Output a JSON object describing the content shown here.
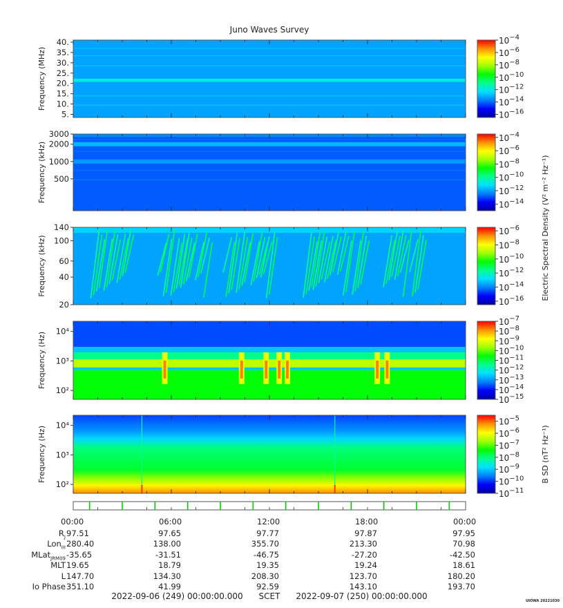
{
  "title": "Juno Waves Survey",
  "colors": {
    "colormap": [
      "#0000a0",
      "#0000ff",
      "#0080ff",
      "#00e0ff",
      "#00ff90",
      "#00ff00",
      "#a0ff00",
      "#ffff00",
      "#ff9000",
      "#ff0000"
    ],
    "background": "#ffffff",
    "event_marker": "#00cc00"
  },
  "chart_data": [
    {
      "type": "heatmap",
      "panel": "HFR high band",
      "ylabel": "Frequency (MHz)",
      "yscale": "linear",
      "ylim": [
        3.5,
        41
      ],
      "y_ticks": [
        {
          "value": 40,
          "label": "40."
        },
        {
          "value": 35,
          "label": "35."
        },
        {
          "value": 30,
          "label": "30."
        },
        {
          "value": 25,
          "label": "25."
        },
        {
          "value": 20,
          "label": "20."
        },
        {
          "value": 15,
          "label": "15."
        },
        {
          "value": 10,
          "label": "10."
        },
        {
          "value": 5,
          "label": "5."
        }
      ],
      "background_level": -13.2,
      "bands": [
        {
          "center": 21.5,
          "width": 1.6,
          "level": -11.8
        }
      ],
      "colorbar": {
        "range": [
          -16.5,
          -4
        ],
        "ticks": [
          -4,
          -6,
          -8,
          -10,
          -12,
          -14,
          -16
        ],
        "label": ""
      }
    },
    {
      "type": "heatmap",
      "panel": "HFR low band",
      "ylabel": "Frequency (kHz)",
      "yscale": "log",
      "ylim": [
        140,
        3000
      ],
      "y_ticks": [
        {
          "value": 3000,
          "label": "3000"
        },
        {
          "value": 2000,
          "label": "2000"
        },
        {
          "value": 1000,
          "label": "1000"
        },
        {
          "value": 500,
          "label": "500"
        }
      ],
      "background_level": -12.8,
      "bands": [
        {
          "center": 2000,
          "level": -11.7
        },
        {
          "center": 1000,
          "level": -12.1
        }
      ],
      "colorbar": {
        "range": [
          -15,
          -3.5
        ],
        "ticks": [
          -4,
          -6,
          -8,
          -10,
          -12,
          -14
        ],
        "label": "Electric Spectral Density (V² m⁻² Hz⁻¹)"
      }
    },
    {
      "type": "heatmap",
      "panel": "LFR high",
      "ylabel": "Frequency (kHz)",
      "yscale": "log",
      "ylim": [
        20,
        140
      ],
      "y_ticks": [
        {
          "value": 140,
          "label": "140"
        },
        {
          "value": 100,
          "label": "100"
        },
        {
          "value": 60,
          "label": "60"
        },
        {
          "value": 40,
          "label": "40"
        },
        {
          "value": 20,
          "label": "20"
        }
      ],
      "background_level": -13.6,
      "emission_bursts_hours": [
        1.5,
        2.3,
        3.1,
        5.6,
        6.4,
        7.0,
        7.9,
        9.6,
        10.4,
        11.3,
        11.9,
        14.5,
        15.1,
        15.8,
        16.6,
        17.5,
        19.4,
        20.1,
        21.0
      ],
      "colorbar": {
        "range": [
          -16.5,
          -5.5
        ],
        "ticks": [
          -6,
          -8,
          -10,
          -12,
          -14,
          -16
        ],
        "label": ""
      }
    },
    {
      "type": "heatmap",
      "panel": "LFR low",
      "ylabel": "Frequency (Hz)",
      "yscale": "log",
      "ylim": [
        50,
        22000
      ],
      "y_ticks": [
        {
          "value": 10000,
          "label": "10⁴"
        },
        {
          "value": 1000,
          "label": "10³"
        },
        {
          "value": 100,
          "label": "10²"
        }
      ],
      "upper_cutoff_hz": 3000,
      "lower_cutoff_hz": 600,
      "intense_hours": [
        5.6,
        10.3,
        11.8,
        12.6,
        13.1,
        18.6,
        19.2
      ],
      "colorbar": {
        "range": [
          -15,
          -7
        ],
        "ticks": [
          -7,
          -8,
          -9,
          -10,
          -11,
          -12,
          -13,
          -14,
          -15
        ],
        "label": ""
      }
    },
    {
      "type": "heatmap",
      "panel": "Magnetic",
      "ylabel": "Frequency (Hz)",
      "yscale": "log",
      "ylim": [
        50,
        22000
      ],
      "y_ticks": [
        {
          "value": 10000,
          "label": "10⁴"
        },
        {
          "value": 1000,
          "label": "10³"
        },
        {
          "value": 100,
          "label": "10²"
        }
      ],
      "spike_hours": [
        4.2,
        16.0
      ],
      "colorbar": {
        "range": [
          -11,
          -4.5
        ],
        "ticks": [
          -5,
          -6,
          -7,
          -8,
          -9,
          -10,
          -11
        ],
        "label": "B SD (nT² Hz⁻¹)"
      }
    }
  ],
  "event_markers_hours": [
    1,
    3,
    5,
    7,
    9,
    11,
    13,
    15,
    17,
    19,
    21,
    23
  ],
  "time_axis": {
    "range_hours": [
      0,
      24
    ],
    "ticks": [
      {
        "hour": 0,
        "label": "00:00"
      },
      {
        "hour": 6,
        "label": "06:00"
      },
      {
        "hour": 12,
        "label": "12:00"
      },
      {
        "hour": 18,
        "label": "18:00"
      },
      {
        "hour": 24,
        "label": "00:00"
      }
    ]
  },
  "ephemeris": {
    "rows": [
      {
        "label": "R",
        "sub": "J",
        "values": [
          "97.51",
          "97.65",
          "97.77",
          "97.87",
          "97.95"
        ]
      },
      {
        "label": "Lon",
        "sub": "III",
        "values": [
          "280.40",
          "138.00",
          "355.70",
          "213.30",
          "70.98"
        ]
      },
      {
        "label": "MLat",
        "sub": "JRM09",
        "values": [
          "-35.65",
          "-31.51",
          "-46.75",
          "-27.20",
          "-42.50"
        ]
      },
      {
        "label": "MLT",
        "sub": "",
        "values": [
          "19.65",
          "18.79",
          "19.35",
          "19.24",
          "18.61"
        ]
      },
      {
        "label": "L",
        "sub": "",
        "values": [
          "147.70",
          "134.30",
          "208.30",
          "123.70",
          "180.20"
        ]
      },
      {
        "label": "Io Phase",
        "sub": "",
        "values": [
          "351.10",
          "41.99",
          "92.59",
          "143.10",
          "193.70"
        ]
      }
    ]
  },
  "footer": {
    "start": "2022-09-06 (249) 00:00:00.000",
    "center": "SCET",
    "end": "2022-09-07 (250) 00:00:00.000"
  },
  "tag": "UIOWA 20221030"
}
